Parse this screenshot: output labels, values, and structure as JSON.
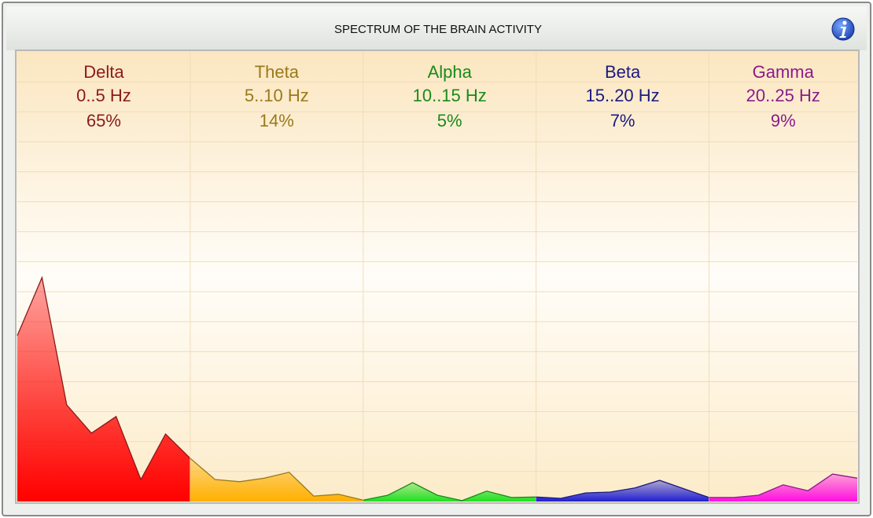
{
  "chart_data": {
    "type": "area",
    "title": "SPECTRUM OF THE BRAIN ACTIVITY",
    "ylim": [
      0,
      100
    ],
    "grid": true,
    "series": [
      {
        "name": "Delta",
        "range": "0..5 Hz",
        "share": 65,
        "share_label": "65%",
        "color": "#8b1a1a",
        "fill": "#ff0000",
        "values": [
          36.9,
          49.8,
          21.5,
          15.2,
          18.9,
          4.9,
          15.0,
          9.6
        ]
      },
      {
        "name": "Theta",
        "range": "5..10 Hz",
        "share": 14,
        "share_label": "14%",
        "color": "#9a7a1a",
        "fill": "#ffb000",
        "values": [
          9.6,
          4.9,
          4.4,
          5.2,
          6.5,
          1.2,
          1.6,
          0.3
        ]
      },
      {
        "name": "Alpha",
        "range": "10..15 Hz",
        "share": 5,
        "share_label": "5%",
        "color": "#1a8a1a",
        "fill": "#20e020",
        "values": [
          0.3,
          1.4,
          4.2,
          1.4,
          0.2,
          2.3,
          0.9,
          1.0
        ]
      },
      {
        "name": "Beta",
        "range": "15..20 Hz",
        "share": 7,
        "share_label": "7%",
        "color": "#1a1a80",
        "fill": "#2020d0",
        "values": [
          1.0,
          0.7,
          1.9,
          2.1,
          3.0,
          4.7,
          2.8,
          0.9
        ]
      },
      {
        "name": "Gamma",
        "range": "20..25 Hz",
        "share": 9,
        "share_label": "9%",
        "color": "#8b1a8b",
        "fill": "#ff10e0",
        "values": [
          0.9,
          0.9,
          1.4,
          3.7,
          2.4,
          6.1,
          5.2
        ]
      }
    ]
  }
}
